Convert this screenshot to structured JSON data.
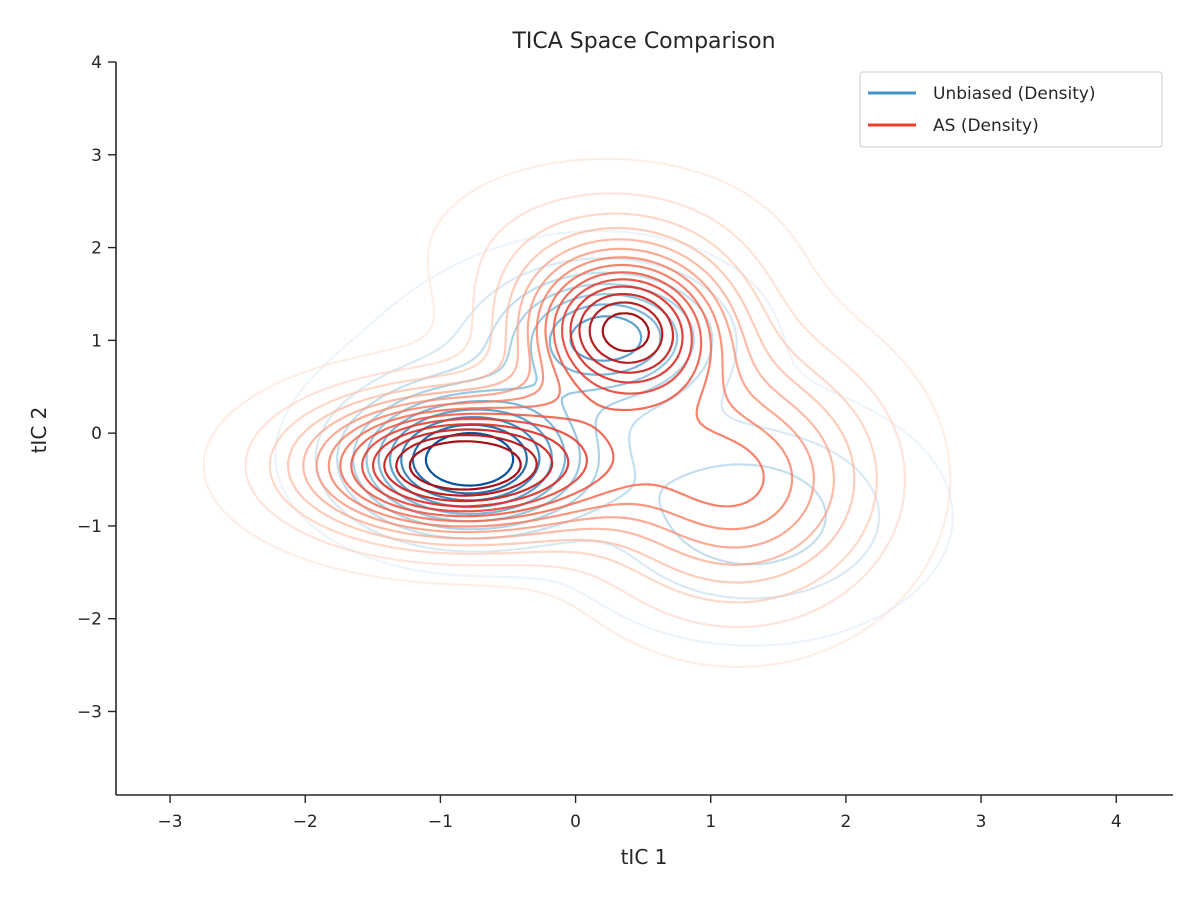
{
  "chart_data": {
    "type": "contour",
    "title": "TICA Space Comparison",
    "xlabel": "tIC 1",
    "ylabel": "tIC 2",
    "xlim": [
      -3.4,
      4.42
    ],
    "ylim": [
      -3.9,
      4.0
    ],
    "xticks": [
      -3,
      -2,
      -1,
      0,
      1,
      2,
      3,
      4
    ],
    "yticks": [
      -3,
      -2,
      -1,
      0,
      1,
      2,
      3,
      4
    ],
    "xtick_labels": [
      "−3",
      "−2",
      "−1",
      "0",
      "1",
      "2",
      "3",
      "4"
    ],
    "ytick_labels": [
      "−3",
      "−2",
      "−1",
      "0",
      "1",
      "2",
      "3",
      "4"
    ],
    "grid": false,
    "legend_position": "top-right",
    "series": [
      {
        "name": "Unbiased (Density)",
        "legend_color": "#4292c6",
        "colormap": [
          "#deebf7",
          "#9ecae1",
          "#6baed6",
          "#3182bd",
          "#08519c"
        ],
        "components": [
          {
            "center": [
              -0.8,
              -0.3
            ],
            "sigma": [
              0.55,
              0.48
            ],
            "weight": 1.0
          },
          {
            "center": [
              0.25,
              1.05
            ],
            "sigma": [
              0.5,
              0.45
            ],
            "weight": 0.6
          },
          {
            "center": [
              1.3,
              -0.9
            ],
            "sigma": [
              0.75,
              0.7
            ],
            "weight": 0.3
          },
          {
            "center": [
              -0.3,
              0.7
            ],
            "sigma": [
              0.95,
              0.8
            ],
            "weight": 0.1
          }
        ],
        "levels": 10
      },
      {
        "name": "AS (Density)",
        "legend_color": "#ef3b2c",
        "colormap": [
          "#fee0d2",
          "#fcae91",
          "#fb6a4a",
          "#de2d26",
          "#a50f15"
        ],
        "components": [
          {
            "center": [
              -0.85,
              -0.35
            ],
            "sigma": [
              0.75,
              0.5
            ],
            "weight": 0.9
          },
          {
            "center": [
              0.35,
              1.1
            ],
            "sigma": [
              0.5,
              0.55
            ],
            "weight": 0.75
          },
          {
            "center": [
              1.2,
              -0.5
            ],
            "sigma": [
              0.7,
              0.9
            ],
            "weight": 0.45
          },
          {
            "center": [
              0.2,
              2.0
            ],
            "sigma": [
              0.8,
              0.6
            ],
            "weight": 0.12
          }
        ],
        "levels": 14
      }
    ]
  }
}
